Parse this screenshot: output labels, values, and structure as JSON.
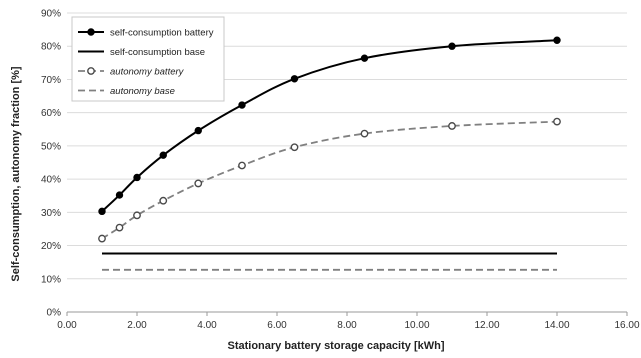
{
  "chart_data": {
    "type": "line",
    "xlabel": "Stationary battery storage capacity [kWh]",
    "ylabel": "Self-consumption, autonomy fraction [%]",
    "xlim": [
      0,
      16
    ],
    "ylim": [
      0,
      90
    ],
    "x_ticks": [
      "0.00",
      "2.00",
      "4.00",
      "6.00",
      "8.00",
      "10.00",
      "12.00",
      "14.00",
      "16.00"
    ],
    "y_ticks": [
      "0%",
      "10%",
      "20%",
      "30%",
      "40%",
      "50%",
      "60%",
      "70%",
      "80%",
      "90%"
    ],
    "grid": "horizontal",
    "legend_position": "top-left",
    "series": [
      {
        "name": "self-consumption battery",
        "color": "#000000",
        "line_style": "solid",
        "marker": "filled-circle",
        "points": [
          [
            1.0,
            30.3
          ],
          [
            1.5,
            35.2
          ],
          [
            2.0,
            40.5
          ],
          [
            2.75,
            47.2
          ],
          [
            3.75,
            54.6
          ],
          [
            5.0,
            62.3
          ],
          [
            6.5,
            70.2
          ],
          [
            8.5,
            76.4
          ],
          [
            11.0,
            80.0
          ],
          [
            14.0,
            81.8
          ]
        ]
      },
      {
        "name": "self-consumption base",
        "color": "#000000",
        "line_style": "solid",
        "marker": "none",
        "points": [
          [
            1.0,
            17.6
          ],
          [
            14.0,
            17.6
          ]
        ]
      },
      {
        "name": "autonomy battery",
        "color": "#808080",
        "line_style": "dashed",
        "marker": "open-circle",
        "points": [
          [
            1.0,
            22.1
          ],
          [
            1.5,
            25.4
          ],
          [
            2.0,
            29.1
          ],
          [
            2.75,
            33.5
          ],
          [
            3.75,
            38.7
          ],
          [
            5.0,
            44.1
          ],
          [
            6.5,
            49.6
          ],
          [
            8.5,
            53.7
          ],
          [
            11.0,
            56.0
          ],
          [
            14.0,
            57.3
          ]
        ]
      },
      {
        "name": "autonomy base",
        "color": "#808080",
        "line_style": "dashed",
        "marker": "none",
        "points": [
          [
            1.0,
            12.7
          ],
          [
            14.0,
            12.7
          ]
        ]
      }
    ]
  }
}
